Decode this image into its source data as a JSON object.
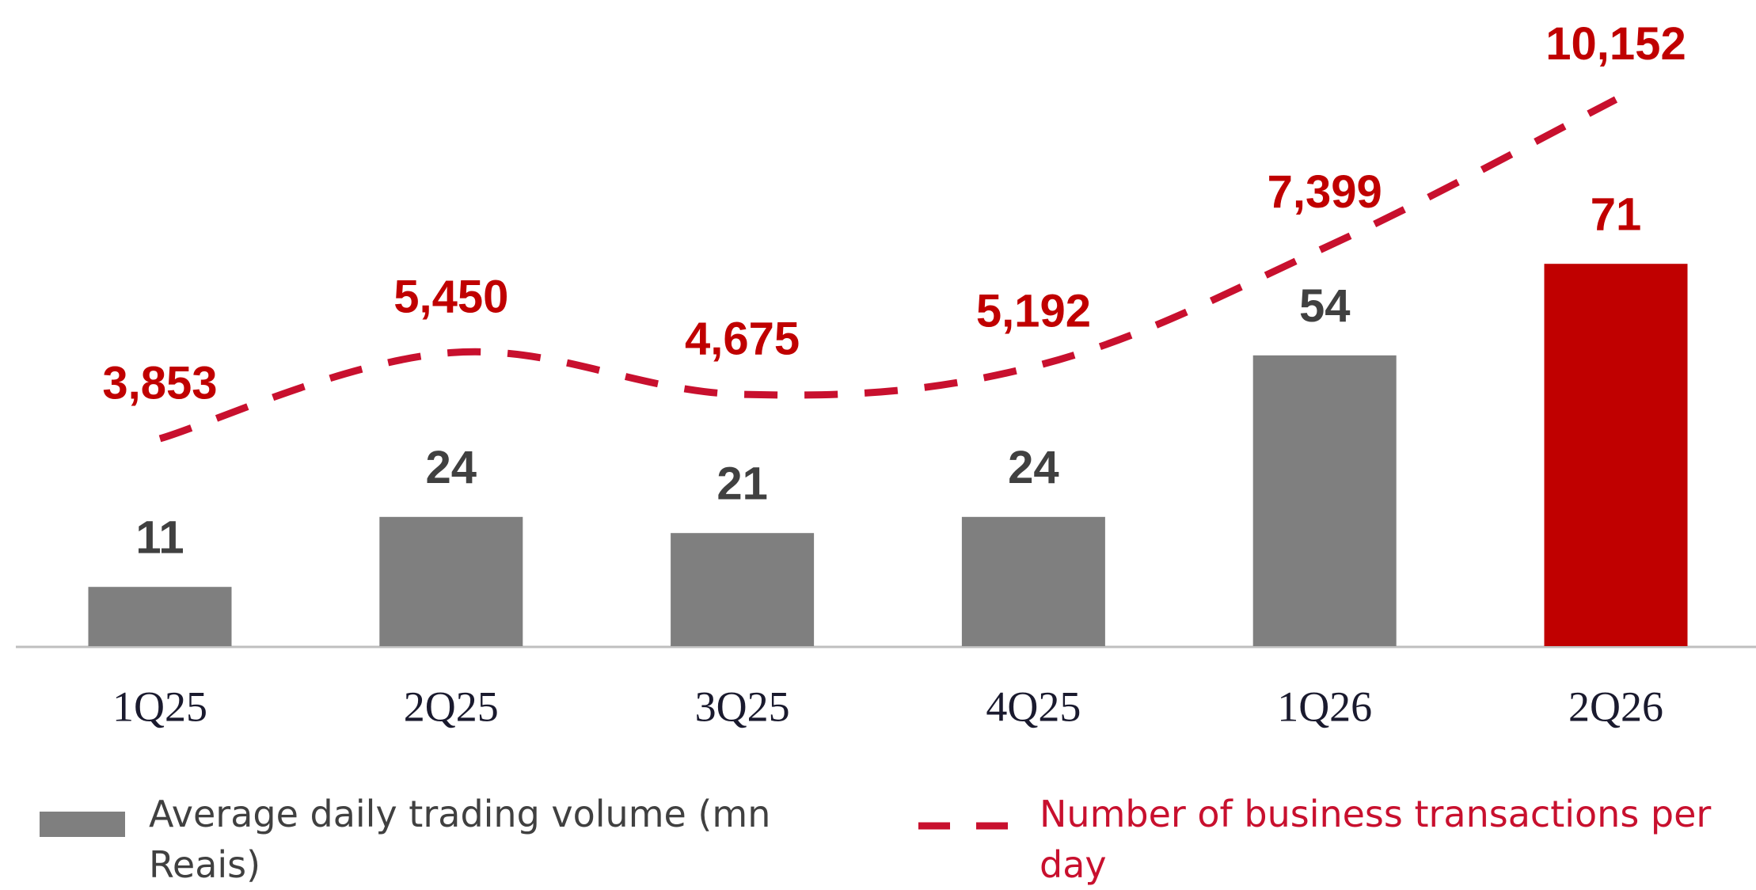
{
  "chart_data": {
    "type": "bar-line",
    "categories": [
      "1Q25",
      "2Q25",
      "3Q25",
      "4Q25",
      "1Q26",
      "2Q26"
    ],
    "series": [
      {
        "name": "Average daily trading volume (mn Reais)",
        "type": "bar",
        "color": "#7f7f7f",
        "colors": [
          "#7f7f7f",
          "#7f7f7f",
          "#7f7f7f",
          "#7f7f7f",
          "#7f7f7f",
          "#c00000"
        ],
        "values": [
          11,
          24,
          21,
          24,
          54,
          71
        ]
      },
      {
        "name": "Number of business transactions per day",
        "type": "line",
        "axis": "y2",
        "color": "#c8102e",
        "values": [
          3853,
          5450,
          4675,
          5192,
          7399,
          10152
        ],
        "value_labels": [
          "3,853",
          "5,450",
          "4,675",
          "5,192",
          "7,399",
          "10,152"
        ]
      }
    ],
    "ylim": [
      0,
      120
    ],
    "y2lim": [
      0,
      12000
    ]
  }
}
